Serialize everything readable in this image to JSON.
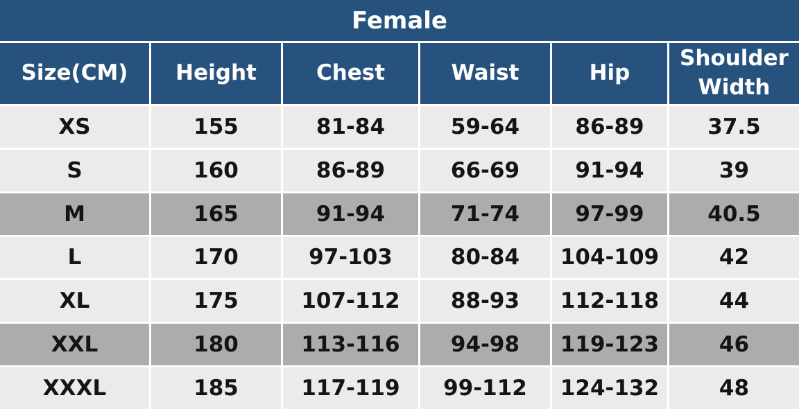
{
  "chart_data": {
    "type": "table",
    "title": "Female",
    "columns": [
      "Size(CM)",
      "Height",
      "Chest",
      "Waist",
      "Hip",
      "Shoulder Width"
    ],
    "rows": [
      [
        "XS",
        "155",
        "81-84",
        "59-64",
        "86-89",
        "37.5"
      ],
      [
        "S",
        "160",
        "86-89",
        "66-69",
        "91-94",
        "39"
      ],
      [
        "M",
        "165",
        "91-94",
        "71-74",
        "97-99",
        "40.5"
      ],
      [
        "L",
        "170",
        "97-103",
        "80-84",
        "104-109",
        "42"
      ],
      [
        "XL",
        "175",
        "107-112",
        "88-93",
        "112-118",
        "44"
      ],
      [
        "XXL",
        "180",
        "113-116",
        "94-98",
        "119-123",
        "46"
      ],
      [
        "XXXL",
        "185",
        "117-119",
        "99-112",
        "124-132",
        "48"
      ]
    ],
    "highlighted_rows": [
      2,
      5
    ],
    "layout_hints": {
      "header_position": "top",
      "grid": "white separator lines between all cells"
    }
  },
  "colors": {
    "header_bg": "#27527D",
    "header_text": "#FFFFFF",
    "row_light_bg": "#ECEAEA",
    "row_dark_bg": "#AEABAB",
    "cell_text": "#141414",
    "separator": "#FFFFFF"
  }
}
